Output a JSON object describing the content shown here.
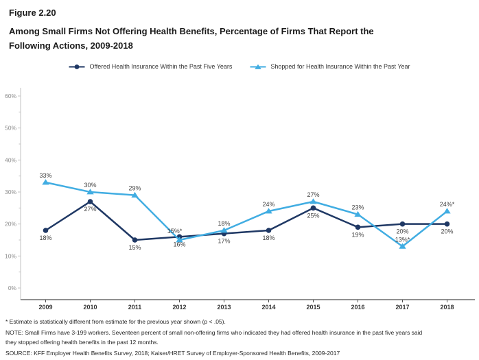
{
  "header": {
    "figure_label": "Figure 2.20",
    "title": "Among Small Firms Not Offering Health Benefits, Percentage of Firms That Report the Following Actions, 2009-2018"
  },
  "chart_data": {
    "type": "line",
    "x": [
      "2009",
      "2010",
      "2011",
      "2012",
      "2013",
      "2014",
      "2015",
      "2016",
      "2017",
      "2018"
    ],
    "series": [
      {
        "name": "Offered Health Insurance Within the Past Five Years",
        "color": "#1F3864",
        "marker": "circle",
        "label_position": "below",
        "values": [
          18,
          27,
          15,
          16,
          17,
          18,
          25,
          19,
          20,
          20
        ],
        "labels": [
          "18%",
          "27%",
          "15%",
          "16%",
          "17%",
          "18%",
          "25%",
          "19%",
          "20%",
          "20%"
        ]
      },
      {
        "name": "Shopped for Health Insurance Within the Past Year",
        "color": "#41ADE2",
        "marker": "triangle",
        "label_position": "above",
        "values": [
          33,
          30,
          29,
          15,
          18,
          24,
          27,
          23,
          13,
          24
        ],
        "labels": [
          "33%",
          "30%",
          "29%",
          "15%*",
          "18%",
          "24%",
          "27%",
          "23%",
          "13%*",
          "24%*"
        ],
        "label_offsets": {
          "3": {
            "dx": -7,
            "dy": -3
          }
        }
      }
    ],
    "ylim": [
      0,
      60
    ],
    "yticks": [
      "0%",
      "10%",
      "20%",
      "30%",
      "40%",
      "50%",
      "60%"
    ],
    "grid": false,
    "legend_position": "top"
  },
  "footnotes": {
    "asterisk": "* Estimate is statistically different from estimate for the previous year shown (p < .05).",
    "note": "NOTE: Small Firms have 3-199 workers. Seventeen percent of small non-offering firms who indicated they had offered health insurance in the past five years said they stopped offering health benefits in the past 12 months.",
    "source": "SOURCE: KFF Employer Health Benefits Survey, 2018; Kaiser/HRET Survey of Employer-Sponsored Health Benefits, 2009-2017"
  },
  "colors": {
    "y_axis_line": "#C3C3C3",
    "y_tick_label": "#8C8C8C",
    "x_axis_line": "#4D4D4D",
    "x_tick_label": "#333333",
    "data_label": "#404040"
  }
}
